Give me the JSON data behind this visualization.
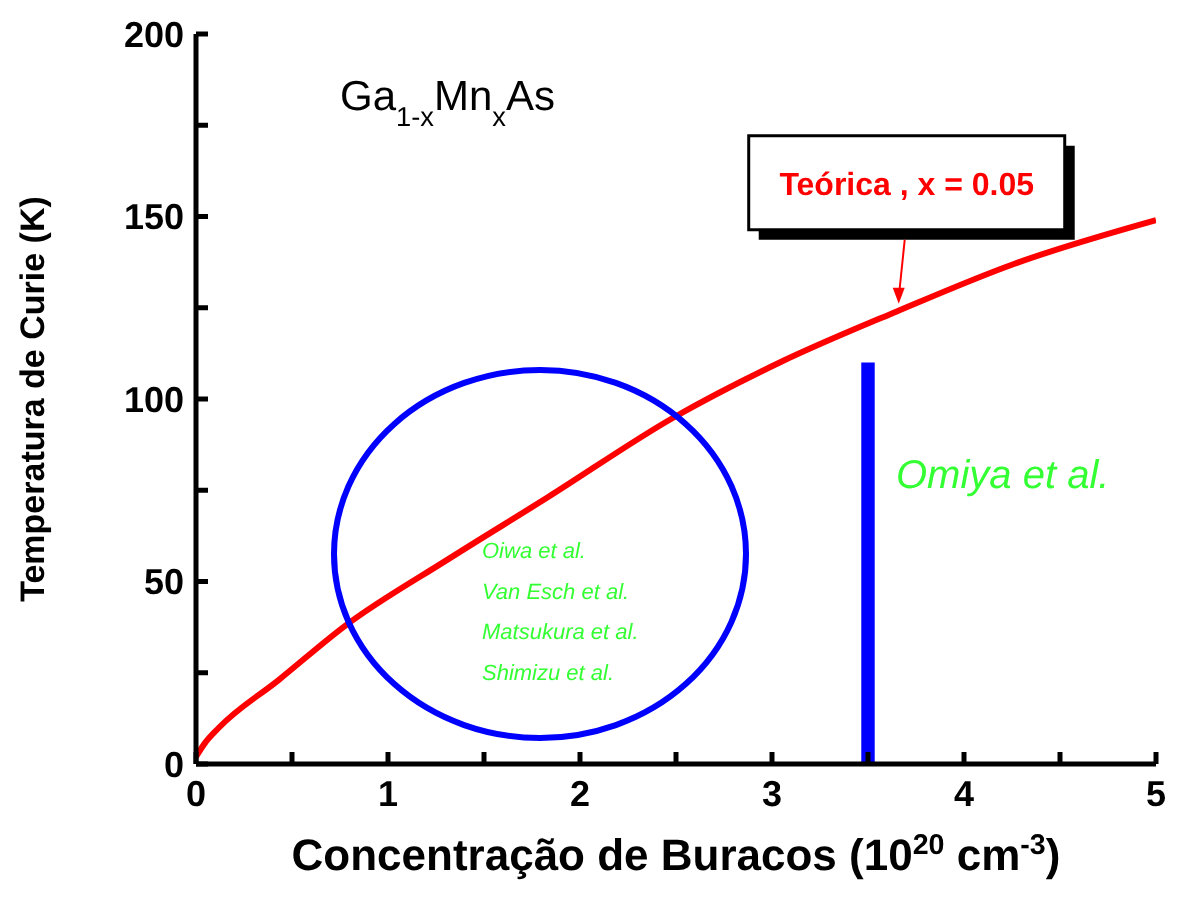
{
  "chart_data": {
    "type": "line",
    "xlabel": "Concentração de Buracos (10$^{20}$ cm$^{-3}$)",
    "ylabel": "Temperatura de Curie (K)",
    "xlim": [
      0,
      5
    ],
    "ylim": [
      0,
      200
    ],
    "xticks": [
      0,
      {
        "value": 0.5,
        "label": null
      },
      1,
      {
        "value": 1.5,
        "label": null
      },
      2,
      {
        "value": 2.5,
        "label": null
      },
      3,
      {
        "value": 3.5,
        "label": null
      },
      4,
      {
        "value": 4.5,
        "label": null
      },
      5
    ],
    "yticks": [
      0,
      {
        "value": 25,
        "label": null
      },
      50,
      {
        "value": 75,
        "label": null
      },
      100,
      {
        "value": 125,
        "label": null
      },
      150,
      {
        "value": 175,
        "label": null
      },
      200
    ],
    "series": [
      {
        "color": "#ff0000",
        "x": [
          0,
          0.05,
          0.12,
          0.43,
          0.78,
          1.31,
          1.83,
          2.49,
          3.04,
          3.65,
          4.26,
          5
        ],
        "values": [
          2,
          6,
          10,
          23,
          38,
          56,
          73,
          95,
          110,
          124,
          137,
          149
        ]
      },
      {
        "type": "bar",
        "color": "#0000ff",
        "x": [
          3.5
        ],
        "values": [
          110
        ]
      }
    ],
    "annotations": [
      "Ga$_{1-x}$Mn$_{x}$As",
      {
        "text": "Teórica , x = 0.05",
        "x": 3.66,
        "y": 125
      },
      "Omiya et al.",
      "Oiwa et al.",
      "Van Esch et al.",
      "Matsukura et al.",
      "Shimizu et al."
    ]
  }
}
